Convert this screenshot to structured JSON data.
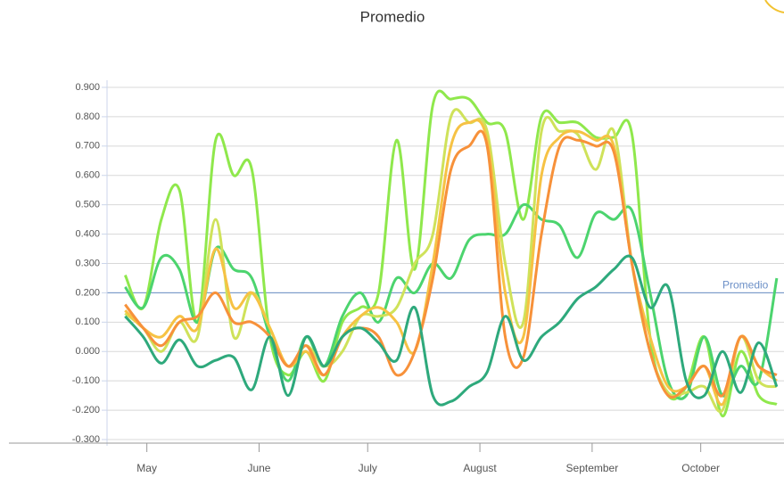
{
  "chart_data": {
    "type": "line",
    "title": "Promedio",
    "x": [
      115,
      120,
      125,
      130,
      135,
      140,
      145,
      150,
      155,
      160,
      165,
      170,
      175,
      180,
      185,
      190,
      195,
      200,
      205,
      210,
      215,
      220,
      225,
      230,
      235,
      240,
      245,
      250,
      255,
      260,
      265,
      270,
      275,
      280,
      285,
      290,
      295
    ],
    "xlim": [
      110,
      297
    ],
    "xticks": [
      {
        "value": 121,
        "label": "May"
      },
      {
        "value": 152,
        "label": "June"
      },
      {
        "value": 182,
        "label": "July"
      },
      {
        "value": 213,
        "label": "August"
      },
      {
        "value": 244,
        "label": "September"
      },
      {
        "value": 274,
        "label": "October"
      }
    ],
    "ylim": [
      -0.3,
      0.9
    ],
    "yticks": [
      {
        "value": -0.3,
        "label": "-0.300"
      },
      {
        "value": -0.2,
        "label": "-0.200"
      },
      {
        "value": -0.1,
        "label": "-0.100"
      },
      {
        "value": 0,
        "label": "0.000"
      },
      {
        "value": 0.1,
        "label": "0.100"
      },
      {
        "value": 0.2,
        "label": "0.200"
      },
      {
        "value": 0.3,
        "label": "0.300"
      },
      {
        "value": 0.4,
        "label": "0.400"
      },
      {
        "value": 0.5,
        "label": "0.500"
      },
      {
        "value": 0.6,
        "label": "0.600"
      },
      {
        "value": 0.7,
        "label": "0.700"
      },
      {
        "value": 0.8,
        "label": "0.800"
      },
      {
        "value": 0.9,
        "label": "0.900"
      }
    ],
    "grid": true,
    "plot_line": {
      "value": 0.2,
      "label": "Promedio",
      "color": "#6b8fc7"
    },
    "series": [
      {
        "color": "#8fe84c",
        "values": [
          0.26,
          0.15,
          0.45,
          0.55,
          0.1,
          0.72,
          0.6,
          0.62,
          0.05,
          -0.08,
          0.0,
          -0.1,
          0.1,
          0.15,
          0.2,
          0.72,
          0.28,
          0.84,
          0.86,
          0.86,
          0.78,
          0.75,
          0.45,
          0.8,
          0.78,
          0.78,
          0.73,
          0.73,
          0.74,
          0.05,
          -0.15,
          -0.12,
          0.05,
          -0.22,
          0.0,
          -0.15,
          -0.18
        ]
      },
      {
        "color": "#4cd46e",
        "values": [
          0.22,
          0.15,
          0.32,
          0.28,
          0.1,
          0.35,
          0.28,
          0.25,
          0.05,
          -0.1,
          0.05,
          -0.05,
          0.12,
          0.2,
          0.1,
          0.25,
          0.2,
          0.3,
          0.25,
          0.38,
          0.4,
          0.4,
          0.5,
          0.45,
          0.43,
          0.32,
          0.47,
          0.45,
          0.48,
          0.2,
          -0.1,
          -0.15,
          0.05,
          -0.15,
          -0.05,
          -0.1,
          0.25
        ]
      },
      {
        "color": "#cfe25a",
        "values": [
          0.13,
          0.08,
          0.0,
          0.1,
          0.05,
          0.45,
          0.05,
          0.2,
          0.08,
          -0.05,
          0.02,
          -0.05,
          0.0,
          0.12,
          0.12,
          0.15,
          0.3,
          0.4,
          0.8,
          0.78,
          0.75,
          0.3,
          0.1,
          0.75,
          0.75,
          0.74,
          0.62,
          0.75,
          0.3,
          0.0,
          -0.14,
          -0.14,
          -0.12,
          -0.2,
          0.05,
          -0.1,
          -0.12
        ]
      },
      {
        "color": "#f6c244",
        "values": [
          0.14,
          0.08,
          0.05,
          0.12,
          0.08,
          0.35,
          0.15,
          0.2,
          0.08,
          -0.05,
          0.0,
          -0.08,
          0.05,
          0.12,
          0.15,
          0.1,
          0.0,
          0.3,
          0.7,
          0.78,
          0.72,
          0.2,
          0.05,
          0.6,
          0.73,
          0.75,
          0.72,
          0.7,
          0.3,
          0.05,
          -0.12,
          -0.12,
          -0.05,
          -0.18,
          0.05,
          -0.05,
          -0.1
        ]
      },
      {
        "color": "#f7913a",
        "values": [
          0.16,
          0.08,
          0.02,
          0.1,
          0.12,
          0.2,
          0.1,
          0.1,
          0.05,
          -0.05,
          0.02,
          -0.08,
          0.05,
          0.08,
          0.05,
          -0.08,
          0.0,
          0.25,
          0.62,
          0.7,
          0.7,
          0.05,
          -0.02,
          0.4,
          0.7,
          0.72,
          0.7,
          0.68,
          0.3,
          0.0,
          -0.15,
          -0.12,
          -0.05,
          -0.15,
          0.05,
          -0.05,
          -0.08
        ]
      },
      {
        "color": "#2ea97c",
        "values": [
          0.12,
          0.05,
          -0.04,
          0.04,
          -0.05,
          -0.03,
          -0.02,
          -0.13,
          0.05,
          -0.15,
          0.05,
          -0.05,
          0.05,
          0.08,
          0.03,
          -0.03,
          0.15,
          -0.15,
          -0.17,
          -0.12,
          -0.07,
          0.12,
          -0.03,
          0.05,
          0.1,
          0.18,
          0.22,
          0.28,
          0.32,
          0.15,
          0.22,
          -0.1,
          -0.15,
          0.0,
          -0.14,
          0.03,
          -0.12
        ]
      }
    ]
  }
}
